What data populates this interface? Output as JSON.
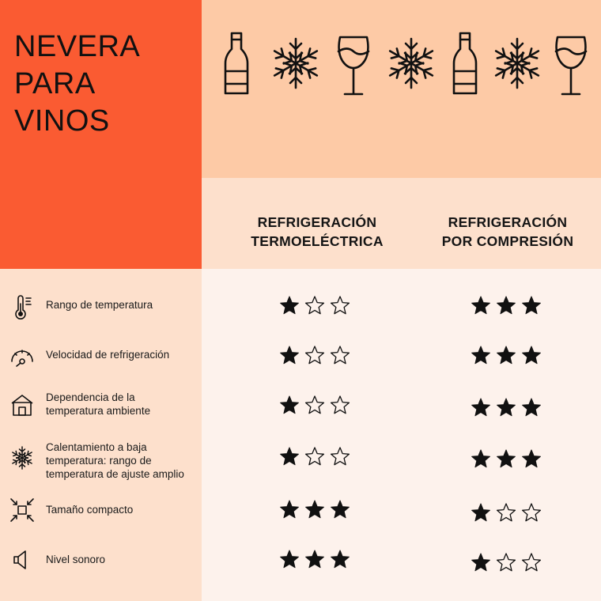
{
  "title": [
    "NEVERA",
    "PARA",
    "VINOS"
  ],
  "decorative_icons": [
    "wine-bottle-icon",
    "snowflake-icon",
    "wine-glass-icon",
    "snowflake-icon",
    "wine-bottle-icon",
    "snowflake-icon",
    "wine-glass-icon"
  ],
  "columns": [
    {
      "line1": "REFRIGERACIÓN",
      "line2": "TERMOELÉCTRICA"
    },
    {
      "line1": "REFRIGERACIÓN",
      "line2": "POR COMPRESIÓN"
    }
  ],
  "rows": [
    {
      "label": "Rango de temperatura",
      "icon": "thermometer-icon",
      "ratings": [
        1,
        3
      ]
    },
    {
      "label": "Velocidad de refrigeración",
      "icon": "speedometer-icon",
      "ratings": [
        1,
        3
      ]
    },
    {
      "label": "Dependencia de la\ntemperatura ambiente",
      "icon": "house-icon",
      "ratings": [
        1,
        3
      ]
    },
    {
      "label": "Calentamiento a baja\ntemperatura: rango de\ntemperatura de ajuste amplio",
      "icon": "snowflake-icon",
      "ratings": [
        1,
        3
      ]
    },
    {
      "label": "Tamaño compacto",
      "icon": "compact-size-icon",
      "ratings": [
        3,
        1
      ]
    },
    {
      "label": "Nivel sonoro",
      "icon": "speaker-icon",
      "ratings": [
        3,
        1
      ]
    }
  ],
  "max_rating": 3,
  "colors": {
    "title_bg": "#fa5b32",
    "icons_bg": "#fdcaa6",
    "header_bg": "#fde0cc",
    "body_bg": "#fdf2ec",
    "ink": "#111111"
  }
}
